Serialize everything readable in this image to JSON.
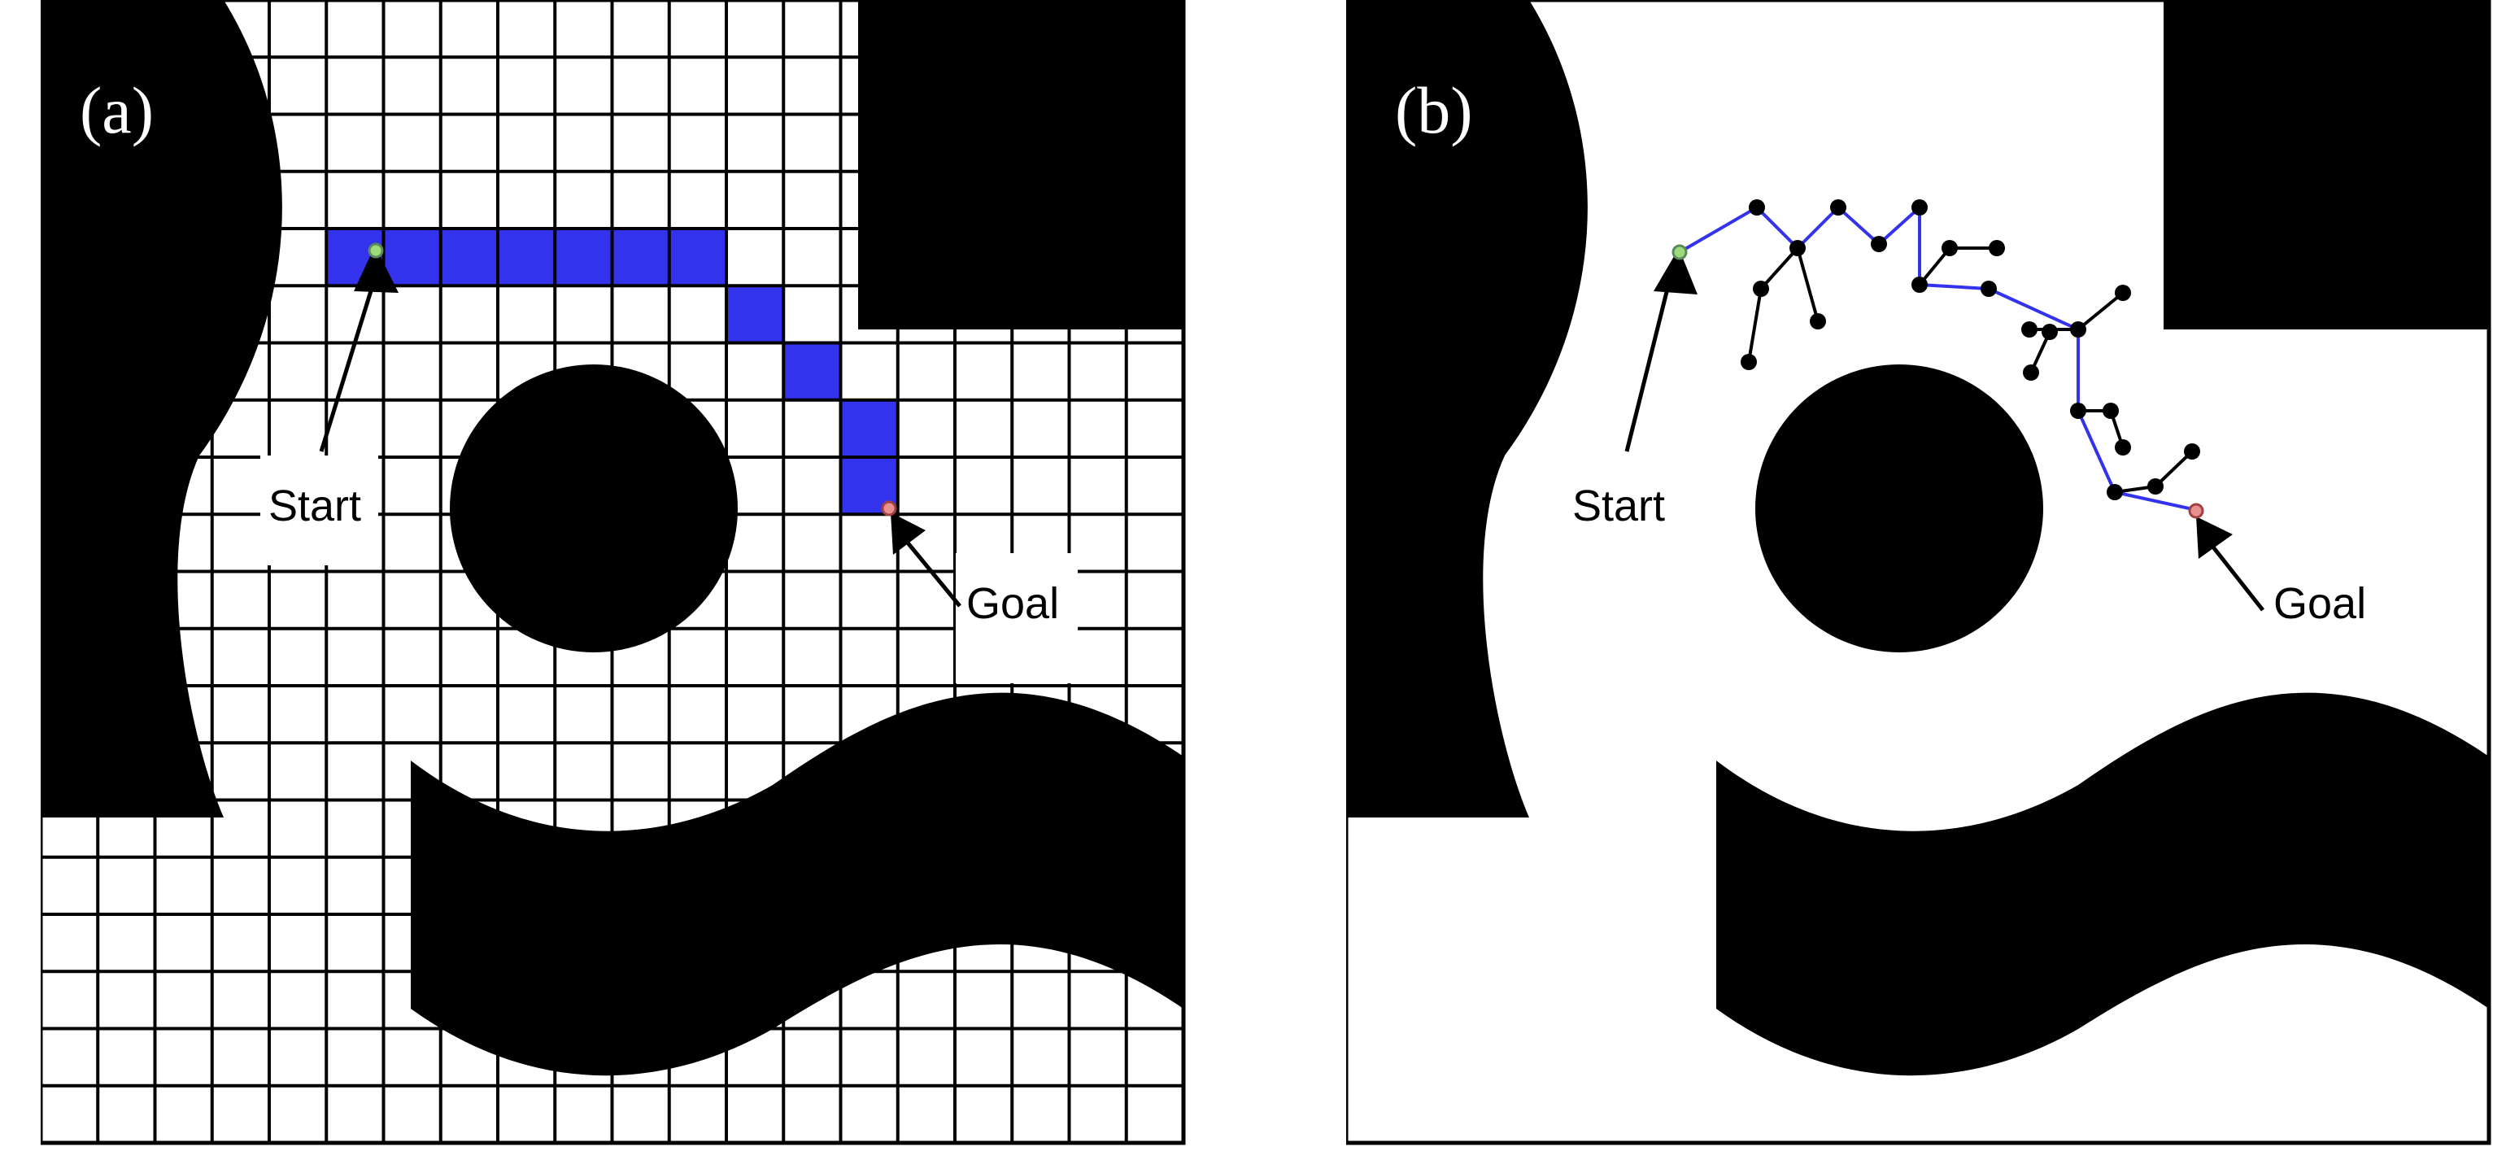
{
  "panels": [
    {
      "label": "(a)",
      "start_label": "Start",
      "goal_label": "Goal",
      "method": "grid",
      "grid_size": 20,
      "path_cells": [
        [
          5,
          4
        ],
        [
          6,
          4
        ],
        [
          7,
          4
        ],
        [
          8,
          4
        ],
        [
          9,
          4
        ],
        [
          10,
          4
        ],
        [
          11,
          4
        ],
        [
          12,
          5
        ],
        [
          13,
          6
        ],
        [
          14,
          7
        ],
        [
          14,
          8
        ]
      ]
    },
    {
      "label": "(b)",
      "start_label": "Start",
      "goal_label": "Goal",
      "method": "tree"
    }
  ],
  "colors": {
    "obstacle": "#000000",
    "path": "#3333ee",
    "start": "#9ed97a",
    "goal": "#e89090"
  }
}
